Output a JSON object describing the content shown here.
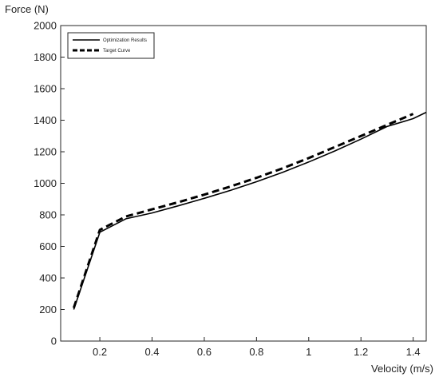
{
  "chart_data": {
    "type": "line",
    "xlabel": "Velocity (m/s)",
    "ylabel": "Force (N)",
    "xlim": [
      0.05,
      1.45
    ],
    "ylim": [
      0,
      2000
    ],
    "xticks": [
      "0.2",
      "0.4",
      "0.6",
      "0.8",
      "1",
      "1.2",
      "1.4"
    ],
    "xtick_values": [
      0.2,
      0.4,
      0.6,
      0.8,
      1.0,
      1.2,
      1.4
    ],
    "yticks": [
      "0",
      "200",
      "400",
      "600",
      "800",
      "1000",
      "1200",
      "1400",
      "1600",
      "1800",
      "2000"
    ],
    "ytick_values": [
      0,
      200,
      400,
      600,
      800,
      1000,
      1200,
      1400,
      1600,
      1800,
      2000
    ],
    "grid": false,
    "legend_position": "top-left",
    "series": [
      {
        "name": "Optimization Results",
        "style": "solid",
        "color": "#000000",
        "x": [
          0.1,
          0.2,
          0.3,
          0.4,
          0.5,
          0.6,
          0.7,
          0.8,
          0.9,
          1.0,
          1.1,
          1.2,
          1.3,
          1.4,
          1.45
        ],
        "y": [
          200,
          690,
          775,
          812,
          857,
          905,
          955,
          1010,
          1070,
          1135,
          1205,
          1280,
          1360,
          1410,
          1450
        ]
      },
      {
        "name": "Target Curve",
        "style": "dashed",
        "color": "#000000",
        "x": [
          0.1,
          0.2,
          0.3,
          0.4,
          0.5,
          0.6,
          0.7,
          0.8,
          0.9,
          1.0,
          1.1,
          1.2,
          1.3,
          1.4
        ],
        "y": [
          210,
          705,
          790,
          835,
          880,
          928,
          980,
          1035,
          1095,
          1160,
          1230,
          1300,
          1370,
          1440
        ]
      }
    ]
  }
}
